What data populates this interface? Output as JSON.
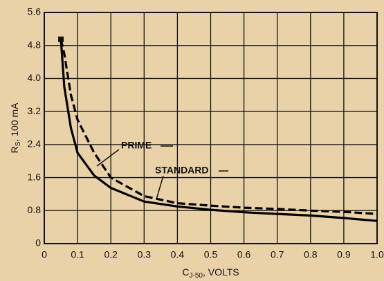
{
  "chart_data": {
    "type": "line",
    "xlabel": {
      "main": "C",
      "sub": "J-50",
      "rest": ", VOLTS"
    },
    "ylabel": {
      "main": "R",
      "sub": "S",
      "rest": ", 100 mA"
    },
    "x": [
      0.05,
      0.06,
      0.08,
      0.1,
      0.15,
      0.2,
      0.3,
      0.4,
      0.5,
      0.6,
      0.7,
      0.8,
      0.9,
      1.0
    ],
    "series": [
      {
        "name": "PRIME",
        "color": "#000000",
        "dashed": false,
        "values": [
          4.95,
          3.8,
          2.8,
          2.2,
          1.65,
          1.35,
          1.02,
          0.9,
          0.82,
          0.76,
          0.72,
          0.68,
          0.62,
          0.55
        ]
      },
      {
        "name": "STANDARD",
        "color": "#000000",
        "dashed": true,
        "values": [
          4.95,
          4.6,
          3.6,
          3.0,
          2.2,
          1.6,
          1.15,
          0.98,
          0.92,
          0.87,
          0.84,
          0.8,
          0.77,
          0.72
        ]
      }
    ],
    "xlim": [
      0,
      1
    ],
    "xticks": [
      0,
      0.1,
      0.2,
      0.3,
      0.4,
      0.5,
      0.6,
      0.7,
      0.8,
      0.9,
      {
        "value": 1,
        "label": "1.0"
      }
    ],
    "ylim": [
      0,
      5.6
    ],
    "yticks": [
      0,
      0.8,
      1.6,
      2.4,
      3.2,
      {
        "value": 4,
        "label": "4.0"
      },
      4.8,
      5.6
    ],
    "grid": true
  }
}
